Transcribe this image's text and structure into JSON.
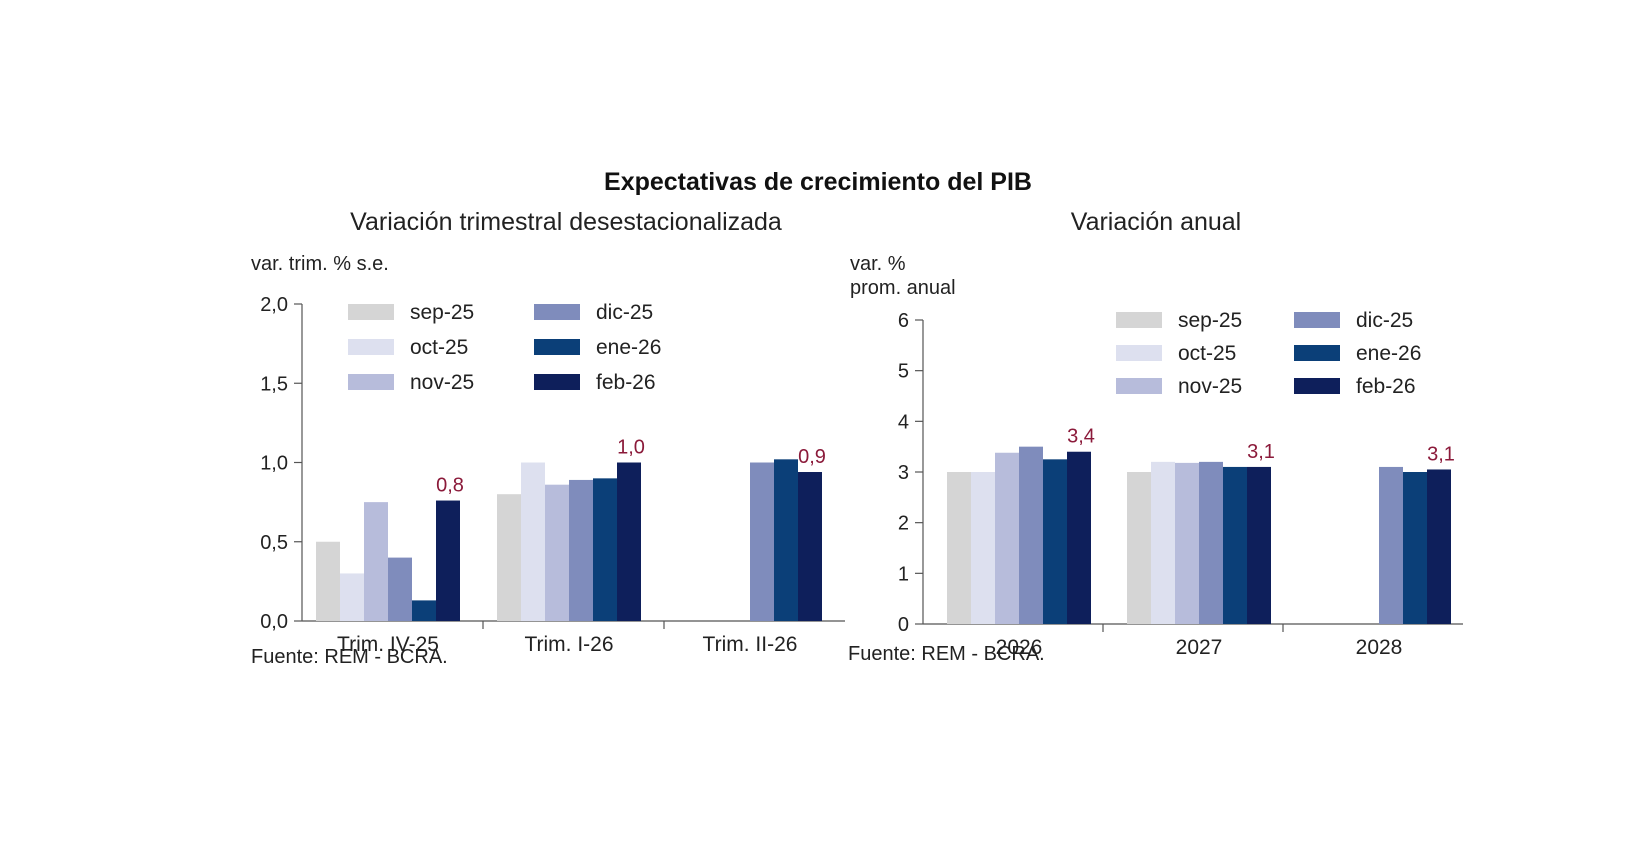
{
  "title": "Expectativas de crecimiento del PIB",
  "colors": {
    "sep-25": "#d5d5d5",
    "oct-25": "#dde0ef",
    "nov-25": "#b7bcdb",
    "dic-25": "#7f8cbc",
    "ene-26": "#0b3f78",
    "feb-26": "#0e1f5b",
    "label": "#8b1a3a",
    "axis": "#555555"
  },
  "chart_data": [
    {
      "type": "bar",
      "title": "Variación trimestral desestacionalizada",
      "ylabel": "var. trim. % s.e.",
      "source": "Fuente: REM - BCRA.",
      "categories": [
        "Trim. IV-25",
        "Trim. I-26",
        "Trim. II-26"
      ],
      "yticks": [
        "0,0",
        "0,5",
        "1,0",
        "1,5",
        "2,0"
      ],
      "ylim": [
        0,
        2
      ],
      "legend": "top-left",
      "series": [
        {
          "name": "sep-25",
          "values": [
            0.5,
            0.8,
            null
          ]
        },
        {
          "name": "oct-25",
          "values": [
            0.3,
            1.0,
            null
          ]
        },
        {
          "name": "nov-25",
          "values": [
            0.75,
            0.86,
            null
          ]
        },
        {
          "name": "dic-25",
          "values": [
            0.4,
            0.89,
            1.0
          ]
        },
        {
          "name": "ene-26",
          "values": [
            0.13,
            0.9,
            1.02
          ]
        },
        {
          "name": "feb-26",
          "values": [
            0.76,
            1.0,
            0.94
          ]
        }
      ],
      "data_labels": [
        "0,8",
        "1,0",
        "0,9"
      ]
    },
    {
      "type": "bar",
      "title": "Variación anual",
      "ylabel": "var. %\nprom. anual",
      "source": "Fuente: REM - BCRA.",
      "categories": [
        "2026",
        "2027",
        "2028"
      ],
      "yticks": [
        "0",
        "1",
        "2",
        "3",
        "4",
        "5",
        "6"
      ],
      "ylim": [
        0,
        6
      ],
      "legend": "top-right",
      "series": [
        {
          "name": "sep-25",
          "values": [
            3.0,
            3.0,
            null
          ]
        },
        {
          "name": "oct-25",
          "values": [
            3.0,
            3.2,
            null
          ]
        },
        {
          "name": "nov-25",
          "values": [
            3.38,
            3.18,
            null
          ]
        },
        {
          "name": "dic-25",
          "values": [
            3.5,
            3.2,
            3.1
          ]
        },
        {
          "name": "ene-26",
          "values": [
            3.25,
            3.1,
            3.0
          ]
        },
        {
          "name": "feb-26",
          "values": [
            3.4,
            3.1,
            3.05
          ]
        }
      ],
      "data_labels": [
        "3,4",
        "3,1",
        "3,1"
      ]
    }
  ]
}
